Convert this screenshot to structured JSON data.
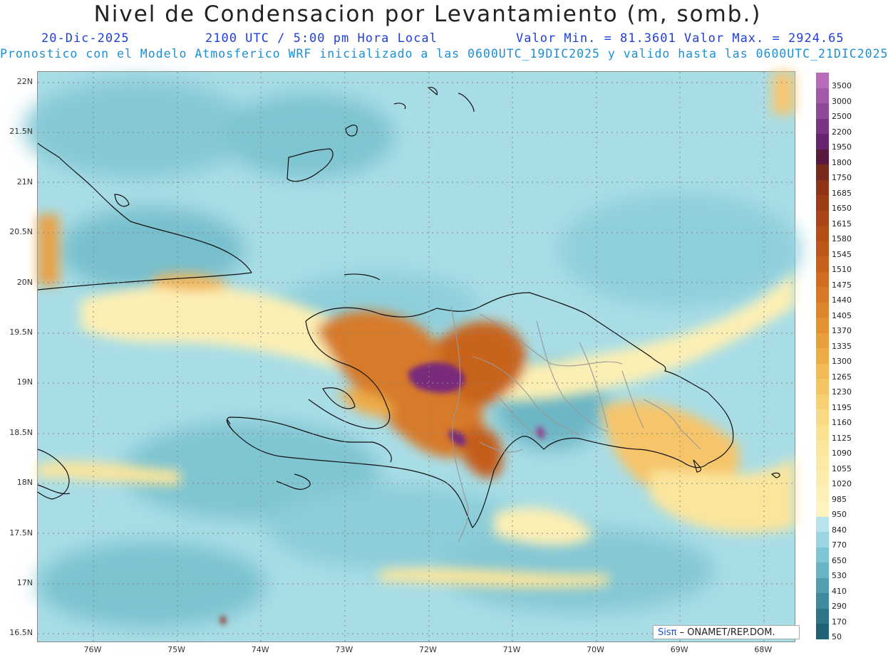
{
  "header": {
    "title": "Nivel de Condensacion por Levantamiento (m, somb.)",
    "date": "20-Dic-2025",
    "time": "2100 UTC / 5:00 pm Hora Local",
    "min_max": "Valor Min. = 81.3601  Valor Max. = 2924.65",
    "model_info": "Pronostico con el Modelo Atmosferico WRF inicializado a las 0600UTC_19DIC2025 y valido hasta las  0600UTC_21DIC2025"
  },
  "map": {
    "lat_labels": [
      "22N",
      "21.5N",
      "21N",
      "20.5N",
      "20N",
      "19.5N",
      "19N",
      "18.5N",
      "18N",
      "17.5N",
      "17N",
      "16.5N"
    ],
    "lon_labels": [
      "76W",
      "75W",
      "74W",
      "73W",
      "72W",
      "71W",
      "70W",
      "69W",
      "68W"
    ],
    "credit_brand": "Sis",
    "credit_pi": "π",
    "credit_text": "– ONAMET/REP.DOM."
  },
  "colorbar": {
    "labels": [
      "3500",
      "3000",
      "2500",
      "2200",
      "1950",
      "1800",
      "1750",
      "1685",
      "1650",
      "1615",
      "1580",
      "1545",
      "1510",
      "1475",
      "1440",
      "1405",
      "1370",
      "1335",
      "1300",
      "1265",
      "1230",
      "1195",
      "1160",
      "1125",
      "1090",
      "1055",
      "1020",
      "985",
      "950",
      "840",
      "770",
      "650",
      "530",
      "410",
      "290",
      "170",
      "50"
    ],
    "colors": [
      "#b86bb8",
      "#a35aa8",
      "#8e4897",
      "#7a3585",
      "#672570",
      "#5a1a3f",
      "#7a2a1c",
      "#8e3518",
      "#9c3d16",
      "#a94516",
      "#b44e17",
      "#bd5719",
      "#c6611c",
      "#cf6c20",
      "#d77824",
      "#de842a",
      "#e49131",
      "#e99f3b",
      "#eeac47",
      "#f2b955",
      "#f5c564",
      "#f7d074",
      "#f9d983",
      "#fae190",
      "#fbe69b",
      "#fbeaa5",
      "#fcedae",
      "#fcf0b6",
      "#fcf3be",
      "#b7e3ec",
      "#99d6e2",
      "#7ec6d3",
      "#67b4c3",
      "#529fb0",
      "#3f8a9c",
      "#2e7687",
      "#1e6273"
    ]
  }
}
